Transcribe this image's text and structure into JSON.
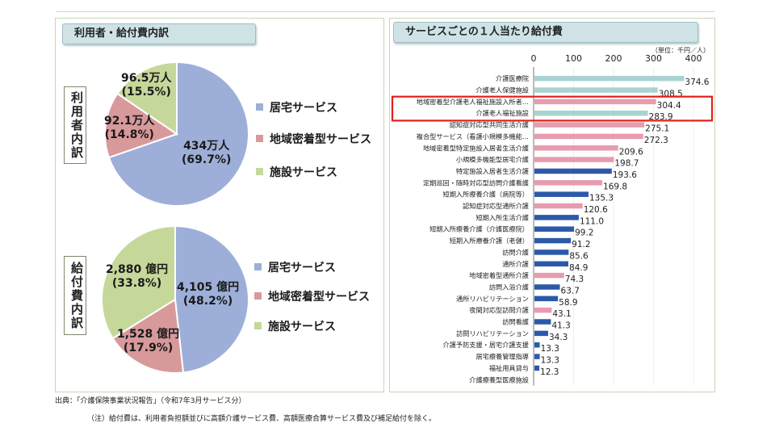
{
  "left": {
    "header": "利用者・給付費内訳",
    "users_side_label": "利用者内訳",
    "cost_side_label": "給付費内訳",
    "legend": [
      "居宅サービス",
      "地域密着型サービス",
      "施設サービス"
    ],
    "colors": {
      "home": "#9dafd8",
      "community": "#d8999b",
      "facility": "#c6d79a"
    },
    "users_pie": {
      "values": [
        69.7,
        14.8,
        15.5
      ],
      "labels": [
        [
          "434万人",
          "(69.7%)"
        ],
        [
          "92.1万人",
          "(14.8%)"
        ],
        [
          "96.5万人",
          "(15.5%)"
        ]
      ]
    },
    "cost_pie": {
      "values": [
        48.2,
        17.9,
        33.8
      ],
      "labels": [
        [
          "4,105 億円",
          "(48.2%)"
        ],
        [
          "1,528 億円",
          "(17.9%)"
        ],
        [
          "2,880 億円",
          "(33.8%)"
        ]
      ]
    }
  },
  "chart_data": {
    "type": "bar",
    "orientation": "horizontal",
    "title": "サービスごとの１人当たり給付費",
    "unit_label": "（単位：千円／人）",
    "xlim": [
      0,
      400
    ],
    "xticks": [
      0,
      100,
      200,
      300,
      400
    ],
    "categories": [
      "介護医療院",
      "介護老人保健施設",
      "地域密着型介護老人福祉施設入所者…",
      "介護老人福祉施設",
      "認知症対応型共同生活介護",
      "複合型サービス（看護小規模多機能…",
      "地域密着型特定施設入居者生活介護",
      "小規模多機能型居宅介護",
      "特定施設入居者生活介護",
      "定期巡回・随時対応型訪問介護看護",
      "短期入所療養介護（病院等）",
      "認知症対応型通所介護",
      "短期入所生活介護",
      "短期入所療養介護（介護医療院）",
      "短期入所療養介護（老健）",
      "訪問介護",
      "通所介護",
      "地域密着型通所介護",
      "訪問入浴介護",
      "通所リハビリテーション",
      "夜間対応型訪問介護",
      "訪問看護",
      "訪問リハビリテーション",
      "介護予防支援・居宅介護支援",
      "居宅療養管理指導",
      "福祉用具貸与",
      "介護療養型医療施設"
    ],
    "values": [
      374.6,
      308.5,
      304.4,
      283.9,
      275.1,
      272.3,
      209.6,
      198.7,
      193.6,
      169.8,
      135.3,
      120.6,
      111.0,
      99.2,
      91.2,
      85.6,
      84.9,
      74.3,
      63.7,
      58.9,
      43.1,
      41.3,
      34.3,
      13.3,
      13.3,
      12.3,
      null
    ],
    "value_labels": [
      "374.6",
      "308.5",
      "304.4",
      "283.9",
      "275.1",
      "272.3",
      "209.6",
      "198.7",
      "193.6",
      "169.8",
      "135.3",
      "120.6",
      "111.0",
      "99.2",
      "91.2",
      "85.6",
      "84.9",
      "74.3",
      "63.7",
      "58.9",
      "43.1",
      "41.3",
      "34.3",
      "13.3",
      "13.3",
      "12.3",
      ""
    ],
    "groups": [
      "facility",
      "facility",
      "community",
      "facility",
      "community",
      "community",
      "community",
      "community",
      "home",
      "community",
      "home",
      "community",
      "home",
      "home",
      "home",
      "home",
      "home",
      "community",
      "home",
      "home",
      "community",
      "home",
      "home",
      "home",
      "home",
      "home",
      "facility"
    ],
    "group_colors": {
      "facility": "#a9d3d3",
      "community": "#e79cae",
      "home": "#2c5aa8"
    },
    "highlighted": [
      "地域密着型介護老人福祉施設入所者…",
      "介護老人福祉施設"
    ],
    "highlight_color": "#e0201c"
  },
  "footer": {
    "source": "出典：「介護保険事業状況報告」（令和7年3月サービス分）",
    "note": "（注）給付費は、利用者負担額並びに高額介護サービス費、高額医療合算サービス費及び補足給付を除く。"
  }
}
